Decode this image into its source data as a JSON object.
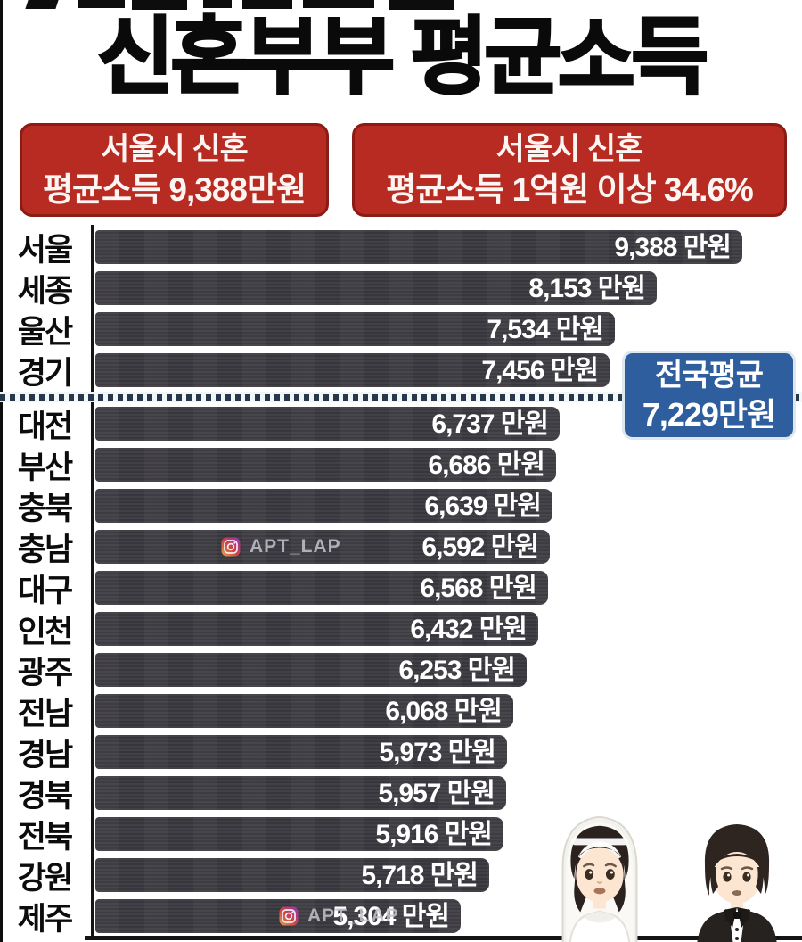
{
  "title": "신혼부부 평균소득",
  "header_badges": [
    {
      "line1": "서울시 신혼",
      "line2": "평균소득 9,388만원"
    },
    {
      "line1": "서울시 신혼",
      "line2": "평균소득 1억원 이상 34.6%"
    }
  ],
  "national_average_callout": {
    "line1": "전국평균",
    "line2": "7,229만원"
  },
  "watermark": {
    "icon": "instagram-icon",
    "label": "APT_LAP",
    "row_indices": [
      7,
      16
    ]
  },
  "emojis": {
    "left": "bride-emoji",
    "right": "groom-emoji"
  },
  "chart_data": {
    "type": "bar",
    "orientation": "horizontal",
    "title": "신혼부부 평균소득",
    "unit": "만원",
    "categories": [
      "서울",
      "세종",
      "울산",
      "경기",
      "대전",
      "부산",
      "충북",
      "충남",
      "대구",
      "인천",
      "광주",
      "전남",
      "경남",
      "경북",
      "전북",
      "강원",
      "제주"
    ],
    "values": [
      9388,
      8153,
      7534,
      7456,
      6737,
      6686,
      6639,
      6592,
      6568,
      6432,
      6253,
      6068,
      5973,
      5957,
      5916,
      5718,
      5304
    ],
    "value_labels": [
      "9,388 만원",
      "8,153 만원",
      "7,534 만원",
      "7,456 만원",
      "6,737 만원",
      "6,686 만원",
      "6,639 만원",
      "6,592 만원",
      "6,568 만원",
      "6,432 만원",
      "6,253 만원",
      "6,068 만원",
      "5,973 만원",
      "5,957 만원",
      "5,916 만원",
      "5,718 만원",
      "5,304 만원"
    ],
    "national_average": {
      "label": "전국평균",
      "value": 7229,
      "line_style": "dotted",
      "line_after_category": "경기"
    },
    "xlim": [
      0,
      10240
    ],
    "grid": false,
    "legend": false,
    "bar_color": "#3c3b41",
    "value_label_color": "#ffffff"
  },
  "colors": {
    "badge_red": "#b72b22",
    "badge_border": "#8a1c13",
    "callout_blue": "#2e5e9e",
    "callout_border": "#dfe7ee",
    "bar": "#3c3b41",
    "divider_dot": "#26384a",
    "axis": "#141414",
    "text": "#0b0b0b"
  }
}
